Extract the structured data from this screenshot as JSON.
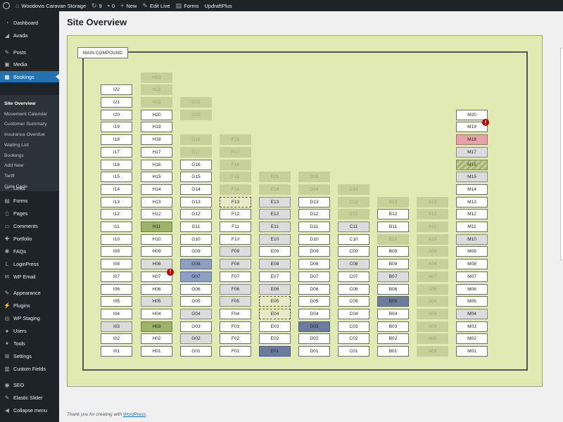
{
  "adminbar": {
    "site_name": "Woodovis Caravan Storage",
    "updates_count": "9",
    "comments_count": "0",
    "new_label": "New",
    "edit_live_label": "Edit Live",
    "forms_label": "Forms",
    "updraft_label": "UpdraftPlus"
  },
  "sidebar": {
    "items": [
      {
        "label": "Dashboard",
        "icon": "dashboard-icon"
      },
      {
        "label": "Avada",
        "icon": "avada-icon"
      },
      {
        "label": "Posts",
        "icon": "pin-icon"
      },
      {
        "label": "Media",
        "icon": "media-icon"
      },
      {
        "label": "Bookings",
        "icon": "calendar-icon"
      },
      {
        "label": "Links",
        "icon": "link-icon"
      },
      {
        "label": "Forms",
        "icon": "forms-icon"
      },
      {
        "label": "Pages",
        "icon": "pages-icon"
      },
      {
        "label": "Comments",
        "icon": "comments-icon"
      },
      {
        "label": "Portfolio",
        "icon": "portfolio-icon"
      },
      {
        "label": "FAQs",
        "icon": "faq-icon"
      },
      {
        "label": "LoginPress",
        "icon": "loginpress-icon"
      },
      {
        "label": "WP Email",
        "icon": "email-icon"
      },
      {
        "label": "Appearance",
        "icon": "brush-icon"
      },
      {
        "label": "Plugins",
        "icon": "plugins-icon"
      },
      {
        "label": "WP Staging",
        "icon": "staging-icon"
      },
      {
        "label": "Users",
        "icon": "users-icon"
      },
      {
        "label": "Tools",
        "icon": "tools-icon"
      },
      {
        "label": "Settings",
        "icon": "settings-icon"
      },
      {
        "label": "Custom Fields",
        "icon": "custom-fields-icon"
      },
      {
        "label": "SEO",
        "icon": "seo-icon"
      },
      {
        "label": "Elastic Slider",
        "icon": "slider-icon"
      },
      {
        "label": "Collapse menu",
        "icon": "collapse-icon"
      }
    ],
    "submenu": [
      "Site Overview",
      "Movement Calendar",
      "Customer Summary",
      "Insurance Overdue",
      "Waiting List",
      "Bookings",
      "Add New",
      "Tariff",
      "Gate Code"
    ]
  },
  "page": {
    "title": "Site Overview",
    "compound_label": "MAIN COMPOUND",
    "footer_text": "Thank you for creating with",
    "footer_link": "WordPress"
  },
  "plots": [
    {
      "id": "I22",
      "s": ""
    },
    {
      "id": "I21",
      "s": ""
    },
    {
      "id": "I20",
      "s": ""
    },
    {
      "id": "I19",
      "s": ""
    },
    {
      "id": "I18",
      "s": ""
    },
    {
      "id": "I17",
      "s": ""
    },
    {
      "id": "I16",
      "s": ""
    },
    {
      "id": "I15",
      "s": ""
    },
    {
      "id": "I14",
      "s": ""
    },
    {
      "id": "I13",
      "s": ""
    },
    {
      "id": "I12",
      "s": ""
    },
    {
      "id": "I11",
      "s": ""
    },
    {
      "id": "I10",
      "s": ""
    },
    {
      "id": "I09",
      "s": ""
    },
    {
      "id": "I08",
      "s": ""
    },
    {
      "id": "I07",
      "s": ""
    },
    {
      "id": "I06",
      "s": ""
    },
    {
      "id": "I05",
      "s": ""
    },
    {
      "id": "I04",
      "s": ""
    },
    {
      "id": "I03",
      "s": "grey"
    },
    {
      "id": "I02",
      "s": ""
    },
    {
      "id": "I01",
      "s": ""
    },
    {
      "id": "H23",
      "s": "disabled"
    },
    {
      "id": "H22",
      "s": "disabled"
    },
    {
      "id": "H21",
      "s": "disabled"
    },
    {
      "id": "H20",
      "s": ""
    },
    {
      "id": "H19",
      "s": ""
    },
    {
      "id": "H18",
      "s": ""
    },
    {
      "id": "H17",
      "s": ""
    },
    {
      "id": "H16",
      "s": ""
    },
    {
      "id": "H15",
      "s": ""
    },
    {
      "id": "H14",
      "s": ""
    },
    {
      "id": "H13",
      "s": ""
    },
    {
      "id": "H12",
      "s": ""
    },
    {
      "id": "H11",
      "s": "green"
    },
    {
      "id": "H10",
      "s": ""
    },
    {
      "id": "H09",
      "s": ""
    },
    {
      "id": "H08",
      "s": "grey"
    },
    {
      "id": "H07",
      "s": "",
      "alert": true
    },
    {
      "id": "H06",
      "s": ""
    },
    {
      "id": "H05",
      "s": "grey"
    },
    {
      "id": "H04",
      "s": ""
    },
    {
      "id": "H03",
      "s": "green"
    },
    {
      "id": "H02",
      "s": ""
    },
    {
      "id": "H01",
      "s": ""
    },
    {
      "id": "G21",
      "s": "disabled"
    },
    {
      "id": "G20",
      "s": "disabled"
    },
    {
      "id": "G18",
      "s": "disabled"
    },
    {
      "id": "G18",
      "s": "disabled"
    },
    {
      "id": "G17",
      "s": "disabled"
    },
    {
      "id": "G16",
      "s": ""
    },
    {
      "id": "G15",
      "s": ""
    },
    {
      "id": "G14",
      "s": ""
    },
    {
      "id": "G13",
      "s": ""
    },
    {
      "id": "G12",
      "s": ""
    },
    {
      "id": "G11",
      "s": ""
    },
    {
      "id": "G10",
      "s": ""
    },
    {
      "id": "G09",
      "s": ""
    },
    {
      "id": "G08",
      "s": "blue"
    },
    {
      "id": "G07",
      "s": "blue"
    },
    {
      "id": "G06",
      "s": ""
    },
    {
      "id": "G05",
      "s": ""
    },
    {
      "id": "G04",
      "s": "grey"
    },
    {
      "id": "G03",
      "s": ""
    },
    {
      "id": "G02",
      "s": "grey"
    },
    {
      "id": "G01",
      "s": ""
    },
    {
      "id": "F18",
      "s": "disabled"
    },
    {
      "id": "F17",
      "s": "disabled"
    },
    {
      "id": "F16",
      "s": "disabled"
    },
    {
      "id": "F15",
      "s": "disabled"
    },
    {
      "id": "F14",
      "s": "disabled"
    },
    {
      "id": "F13",
      "s": "dotted"
    },
    {
      "id": "F12",
      "s": ""
    },
    {
      "id": "F11",
      "s": ""
    },
    {
      "id": "F10",
      "s": ""
    },
    {
      "id": "F09",
      "s": "grey"
    },
    {
      "id": "F08",
      "s": "grey"
    },
    {
      "id": "F07",
      "s": ""
    },
    {
      "id": "F06",
      "s": "grey"
    },
    {
      "id": "F05",
      "s": "grey"
    },
    {
      "id": "F04",
      "s": ""
    },
    {
      "id": "F03",
      "s": ""
    },
    {
      "id": "F02",
      "s": ""
    },
    {
      "id": "F01",
      "s": ""
    },
    {
      "id": "E15",
      "s": "disabled"
    },
    {
      "id": "E14",
      "s": "disabled"
    },
    {
      "id": "E13",
      "s": "grey"
    },
    {
      "id": "E12",
      "s": "grey"
    },
    {
      "id": "E11",
      "s": "grey"
    },
    {
      "id": "E10",
      "s": "grey"
    },
    {
      "id": "E09",
      "s": ""
    },
    {
      "id": "E08",
      "s": "grey"
    },
    {
      "id": "E07",
      "s": ""
    },
    {
      "id": "E06",
      "s": "grey"
    },
    {
      "id": "E05",
      "s": "dotted"
    },
    {
      "id": "E04",
      "s": "dotted"
    },
    {
      "id": "E03",
      "s": ""
    },
    {
      "id": "E02",
      "s": ""
    },
    {
      "id": "E01",
      "s": "darkblue"
    },
    {
      "id": "D15",
      "s": "disabled"
    },
    {
      "id": "D14",
      "s": "disabled"
    },
    {
      "id": "D13",
      "s": ""
    },
    {
      "id": "D12",
      "s": ""
    },
    {
      "id": "D11",
      "s": ""
    },
    {
      "id": "D10",
      "s": ""
    },
    {
      "id": "D09",
      "s": ""
    },
    {
      "id": "D08",
      "s": ""
    },
    {
      "id": "D07",
      "s": ""
    },
    {
      "id": "D06",
      "s": ""
    },
    {
      "id": "D05",
      "s": ""
    },
    {
      "id": "D04",
      "s": ""
    },
    {
      "id": "D03",
      "s": "darkblue"
    },
    {
      "id": "D02",
      "s": ""
    },
    {
      "id": "D01",
      "s": ""
    },
    {
      "id": "C14",
      "s": "disabled"
    },
    {
      "id": "C13",
      "s": "disabled"
    },
    {
      "id": "C12",
      "s": "disabled"
    },
    {
      "id": "C11",
      "s": "grey"
    },
    {
      "id": "C10",
      "s": ""
    },
    {
      "id": "C09",
      "s": ""
    },
    {
      "id": "C08",
      "s": "grey"
    },
    {
      "id": "C07",
      "s": ""
    },
    {
      "id": "C06",
      "s": ""
    },
    {
      "id": "C05",
      "s": ""
    },
    {
      "id": "C04",
      "s": ""
    },
    {
      "id": "C03",
      "s": ""
    },
    {
      "id": "C02",
      "s": ""
    },
    {
      "id": "C01",
      "s": ""
    },
    {
      "id": "B13",
      "s": "disabled"
    },
    {
      "id": "B12",
      "s": ""
    },
    {
      "id": "B11",
      "s": ""
    },
    {
      "id": "B10",
      "s": "disabled"
    },
    {
      "id": "B09",
      "s": ""
    },
    {
      "id": "B08",
      "s": ""
    },
    {
      "id": "B07",
      "s": "grey"
    },
    {
      "id": "B06",
      "s": ""
    },
    {
      "id": "B05",
      "s": "darkblue"
    },
    {
      "id": "B04",
      "s": ""
    },
    {
      "id": "B03",
      "s": ""
    },
    {
      "id": "B02",
      "s": ""
    },
    {
      "id": "B01",
      "s": ""
    },
    {
      "id": "A13",
      "s": "disabled"
    },
    {
      "id": "A12",
      "s": "disabled"
    },
    {
      "id": "A11",
      "s": "disabled"
    },
    {
      "id": "A10",
      "s": "disabled"
    },
    {
      "id": "A09",
      "s": "disabled"
    },
    {
      "id": "A08",
      "s": "disabled"
    },
    {
      "id": "A07",
      "s": "disabled"
    },
    {
      "id": "A06",
      "s": "disabled"
    },
    {
      "id": "A05",
      "s": "disabled"
    },
    {
      "id": "A04",
      "s": "disabled"
    },
    {
      "id": "A03",
      "s": "disabled"
    },
    {
      "id": "A02",
      "s": "disabled"
    },
    {
      "id": "A01",
      "s": "disabled"
    },
    {
      "id": "M20",
      "s": ""
    },
    {
      "id": "M19",
      "s": "",
      "alert": true
    },
    {
      "id": "M18",
      "s": "red"
    },
    {
      "id": "M17",
      "s": "grey"
    },
    {
      "id": "M16",
      "s": "hatched"
    },
    {
      "id": "M15",
      "s": "grey"
    },
    {
      "id": "M14",
      "s": ""
    },
    {
      "id": "M13",
      "s": ""
    },
    {
      "id": "M12",
      "s": ""
    },
    {
      "id": "M11",
      "s": ""
    },
    {
      "id": "M10",
      "s": "grey"
    },
    {
      "id": "M09",
      "s": ""
    },
    {
      "id": "M08",
      "s": ""
    },
    {
      "id": "M07",
      "s": ""
    },
    {
      "id": "M06",
      "s": ""
    },
    {
      "id": "M05",
      "s": ""
    },
    {
      "id": "M04",
      "s": "grey"
    },
    {
      "id": "M03",
      "s": ""
    },
    {
      "id": "M02",
      "s": ""
    },
    {
      "id": "M01",
      "s": ""
    }
  ]
}
